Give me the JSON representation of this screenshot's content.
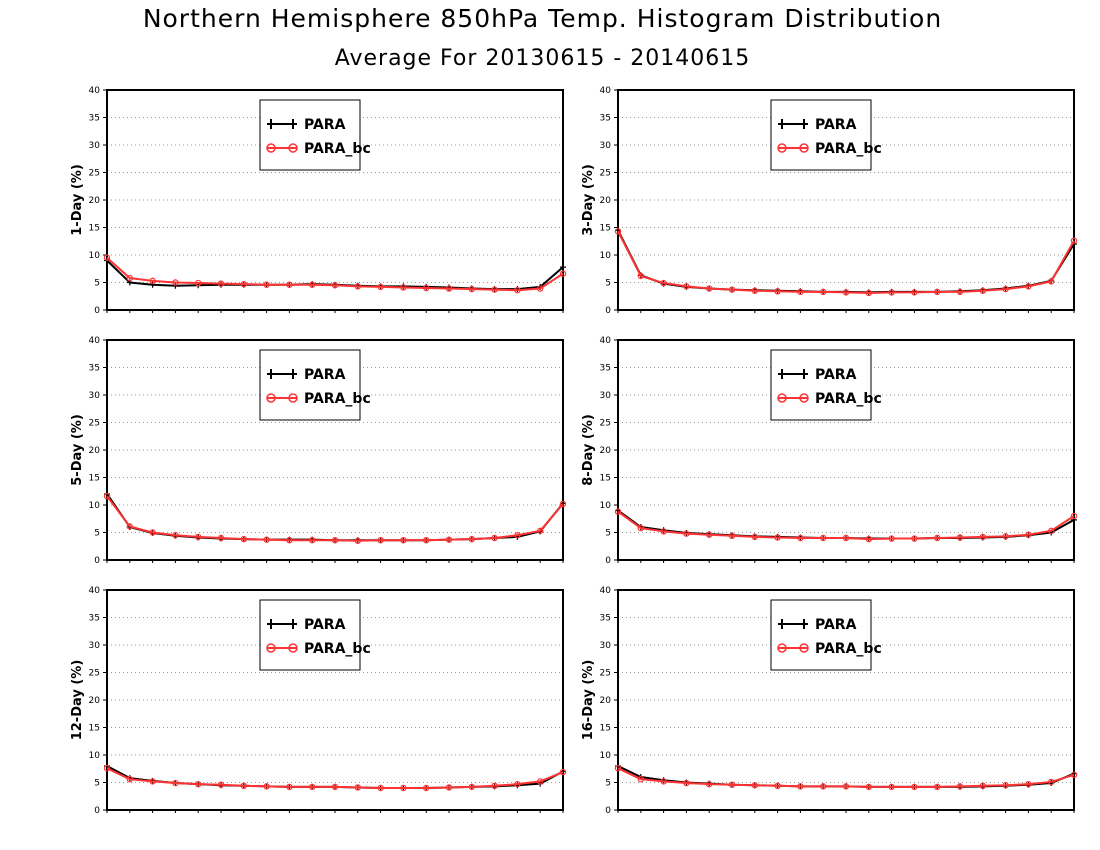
{
  "title": "Northern Hemisphere 850hPa Temp. Histogram Distribution",
  "subtitle": "Average For 20130615 - 20140615",
  "colors": {
    "PARA": "#000000",
    "PARA_bc": "#ff3333",
    "grid": "#9a9a9a"
  },
  "chart_data": [
    {
      "type": "line",
      "ylabel": "1-Day (%)",
      "ylim": [
        0,
        40
      ],
      "yticks": [
        0,
        5,
        10,
        15,
        20,
        25,
        30,
        35,
        40
      ],
      "grid": "horizontal-dotted",
      "legend_position": "top-center",
      "x": [
        1,
        2,
        3,
        4,
        5,
        6,
        7,
        8,
        9,
        10,
        11,
        12,
        13,
        14,
        15,
        16,
        17,
        18,
        19,
        20,
        21
      ],
      "series": [
        {
          "name": "PARA",
          "marker": "plus",
          "values": [
            9.0,
            5.0,
            4.6,
            4.4,
            4.5,
            4.6,
            4.6,
            4.6,
            4.6,
            4.7,
            4.6,
            4.4,
            4.3,
            4.3,
            4.2,
            4.1,
            3.9,
            3.8,
            3.8,
            4.2,
            7.8
          ]
        },
        {
          "name": "PARA_bc",
          "marker": "circle",
          "values": [
            9.5,
            5.8,
            5.3,
            5.0,
            4.9,
            4.8,
            4.7,
            4.6,
            4.6,
            4.6,
            4.5,
            4.3,
            4.2,
            4.1,
            4.0,
            3.9,
            3.8,
            3.7,
            3.6,
            3.9,
            6.6
          ]
        }
      ]
    },
    {
      "type": "line",
      "ylabel": "3-Day (%)",
      "ylim": [
        0,
        40
      ],
      "yticks": [
        0,
        5,
        10,
        15,
        20,
        25,
        30,
        35,
        40
      ],
      "grid": "horizontal-dotted",
      "legend_position": "top-center",
      "x": [
        1,
        2,
        3,
        4,
        5,
        6,
        7,
        8,
        9,
        10,
        11,
        12,
        13,
        14,
        15,
        16,
        17,
        18,
        19,
        20,
        21
      ],
      "series": [
        {
          "name": "PARA",
          "marker": "plus",
          "values": [
            14.5,
            6.3,
            4.8,
            4.2,
            3.9,
            3.7,
            3.6,
            3.5,
            3.4,
            3.3,
            3.3,
            3.2,
            3.3,
            3.3,
            3.3,
            3.4,
            3.6,
            3.9,
            4.4,
            5.3,
            12.0
          ]
        },
        {
          "name": "PARA_bc",
          "marker": "circle",
          "values": [
            14.3,
            6.2,
            4.9,
            4.3,
            3.9,
            3.7,
            3.5,
            3.4,
            3.3,
            3.3,
            3.2,
            3.1,
            3.2,
            3.2,
            3.3,
            3.3,
            3.5,
            3.8,
            4.3,
            5.2,
            12.6
          ]
        }
      ]
    },
    {
      "type": "line",
      "ylabel": "5-Day (%)",
      "ylim": [
        0,
        40
      ],
      "yticks": [
        0,
        5,
        10,
        15,
        20,
        25,
        30,
        35,
        40
      ],
      "grid": "horizontal-dotted",
      "legend_position": "top-center",
      "x": [
        1,
        2,
        3,
        4,
        5,
        6,
        7,
        8,
        9,
        10,
        11,
        12,
        13,
        14,
        15,
        16,
        17,
        18,
        19,
        20,
        21
      ],
      "series": [
        {
          "name": "PARA",
          "marker": "plus",
          "values": [
            12.0,
            6.0,
            4.9,
            4.4,
            4.1,
            3.9,
            3.8,
            3.7,
            3.7,
            3.7,
            3.6,
            3.6,
            3.6,
            3.6,
            3.6,
            3.7,
            3.8,
            4.0,
            4.2,
            5.2,
            10.3
          ]
        },
        {
          "name": "PARA_bc",
          "marker": "circle",
          "values": [
            11.6,
            6.1,
            5.0,
            4.5,
            4.2,
            4.0,
            3.8,
            3.7,
            3.6,
            3.6,
            3.6,
            3.5,
            3.6,
            3.6,
            3.6,
            3.7,
            3.8,
            4.0,
            4.5,
            5.3,
            10.2
          ]
        }
      ]
    },
    {
      "type": "line",
      "ylabel": "8-Day (%)",
      "ylim": [
        0,
        40
      ],
      "yticks": [
        0,
        5,
        10,
        15,
        20,
        25,
        30,
        35,
        40
      ],
      "grid": "horizontal-dotted",
      "legend_position": "top-center",
      "x": [
        1,
        2,
        3,
        4,
        5,
        6,
        7,
        8,
        9,
        10,
        11,
        12,
        13,
        14,
        15,
        16,
        17,
        18,
        19,
        20,
        21
      ],
      "series": [
        {
          "name": "PARA",
          "marker": "plus",
          "values": [
            9.0,
            6.0,
            5.4,
            4.9,
            4.7,
            4.5,
            4.3,
            4.2,
            4.1,
            4.0,
            4.0,
            3.9,
            3.9,
            3.9,
            4.0,
            4.0,
            4.1,
            4.2,
            4.5,
            5.0,
            7.3
          ]
        },
        {
          "name": "PARA_bc",
          "marker": "circle",
          "values": [
            8.8,
            5.8,
            5.2,
            4.8,
            4.6,
            4.4,
            4.2,
            4.1,
            4.0,
            4.0,
            4.0,
            3.8,
            3.9,
            3.9,
            4.0,
            4.1,
            4.2,
            4.3,
            4.6,
            5.3,
            8.0
          ]
        }
      ]
    },
    {
      "type": "line",
      "ylabel": "12-Day (%)",
      "ylim": [
        0,
        40
      ],
      "yticks": [
        0,
        5,
        10,
        15,
        20,
        25,
        30,
        35,
        40
      ],
      "grid": "horizontal-dotted",
      "legend_position": "top-center",
      "x": [
        1,
        2,
        3,
        4,
        5,
        6,
        7,
        8,
        9,
        10,
        11,
        12,
        13,
        14,
        15,
        16,
        17,
        18,
        19,
        20,
        21
      ],
      "series": [
        {
          "name": "PARA",
          "marker": "plus",
          "values": [
            8.0,
            5.8,
            5.3,
            4.9,
            4.7,
            4.5,
            4.4,
            4.3,
            4.2,
            4.2,
            4.2,
            4.1,
            4.0,
            4.0,
            4.0,
            4.1,
            4.2,
            4.3,
            4.5,
            4.8,
            7.0
          ]
        },
        {
          "name": "PARA_bc",
          "marker": "circle",
          "values": [
            7.6,
            5.6,
            5.2,
            4.9,
            4.7,
            4.6,
            4.4,
            4.3,
            4.2,
            4.2,
            4.2,
            4.1,
            4.0,
            4.0,
            4.0,
            4.1,
            4.2,
            4.4,
            4.7,
            5.2,
            6.9
          ]
        }
      ]
    },
    {
      "type": "line",
      "ylabel": "16-Day (%)",
      "ylim": [
        0,
        40
      ],
      "yticks": [
        0,
        5,
        10,
        15,
        20,
        25,
        30,
        35,
        40
      ],
      "grid": "horizontal-dotted",
      "legend_position": "top-center",
      "x": [
        1,
        2,
        3,
        4,
        5,
        6,
        7,
        8,
        9,
        10,
        11,
        12,
        13,
        14,
        15,
        16,
        17,
        18,
        19,
        20,
        21
      ],
      "series": [
        {
          "name": "PARA",
          "marker": "plus",
          "values": [
            8.0,
            6.0,
            5.4,
            5.0,
            4.8,
            4.6,
            4.5,
            4.4,
            4.3,
            4.3,
            4.3,
            4.2,
            4.2,
            4.2,
            4.2,
            4.2,
            4.3,
            4.4,
            4.6,
            4.9,
            6.6
          ]
        },
        {
          "name": "PARA_bc",
          "marker": "circle",
          "values": [
            7.6,
            5.6,
            5.2,
            4.9,
            4.7,
            4.6,
            4.5,
            4.4,
            4.3,
            4.3,
            4.3,
            4.2,
            4.2,
            4.2,
            4.2,
            4.3,
            4.4,
            4.5,
            4.7,
            5.1,
            6.4
          ]
        }
      ]
    }
  ]
}
